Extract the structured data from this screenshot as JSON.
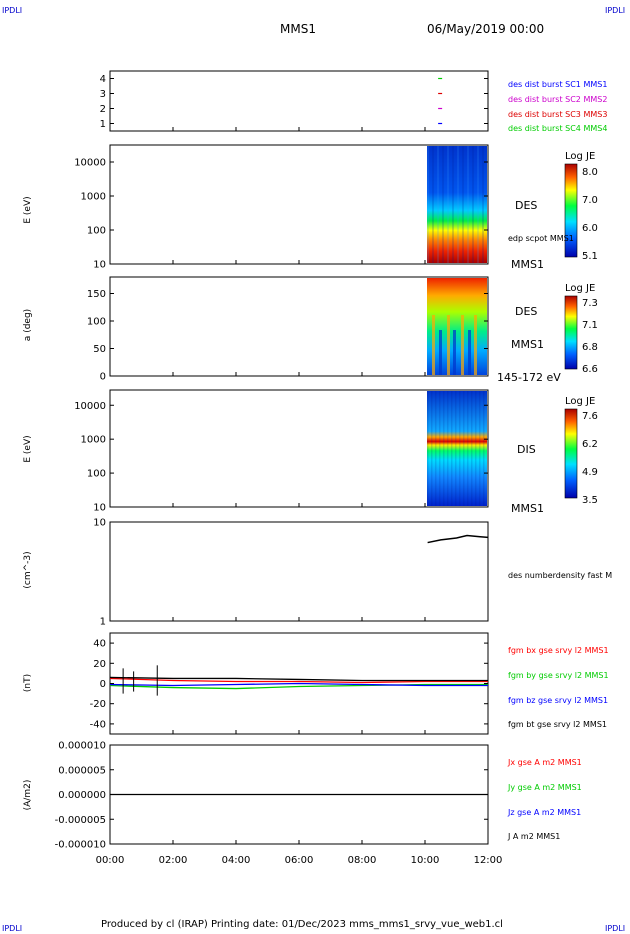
{
  "corners": {
    "tl": "IPDLI",
    "tr": "IPDLI",
    "bl": "IPDLI",
    "br": "IPDLI"
  },
  "header": {
    "mission": "MMS1",
    "datetime": "06/May/2019 00:00"
  },
  "footer": "Produced by cl (IRAP)    Printing date: 01/Dec/2023    mms_mms1_srvy_vue_web1.cl",
  "colors": {
    "mms1": "#0000ff",
    "mms2": "#cc00cc",
    "mms3": "#dd0000",
    "mms4": "#00cc00",
    "bx": "#ff0000",
    "by": "#00cc00",
    "bz": "#0000ff",
    "bt": "#000000"
  },
  "chart_data": [
    {
      "type": "scatter",
      "ylim": [
        0.5,
        4.5
      ],
      "yticks": [
        "1",
        "2",
        "3",
        "4"
      ],
      "legend": [
        "des dist burst SC1 MMS1",
        "des dist burst SC2 MMS2",
        "des dist burst SC3 MMS3",
        "des dist burst SC4 MMS4"
      ],
      "x": [
        "10:25",
        "10:25",
        "10:25",
        "10:25"
      ],
      "values": [
        1,
        2,
        3,
        4
      ]
    },
    {
      "type": "heatmap",
      "ylabel": "E (eV)",
      "yscale": "log",
      "yticks": [
        "10",
        "100",
        "1000",
        "10000"
      ],
      "labels": [
        "DES",
        "edp scpot MMS1",
        "MMS1"
      ],
      "colorbar": {
        "title": "Log JE",
        "ticks": [
          "8.0",
          "7.0",
          "6.0",
          "5.1"
        ]
      },
      "x_range": [
        "10:03",
        "12:00"
      ]
    },
    {
      "type": "heatmap",
      "ylabel": "a (deg)",
      "yticks": [
        "0",
        "50",
        "100",
        "150"
      ],
      "labels": [
        "DES",
        "MMS1",
        "145-172 eV"
      ],
      "colorbar": {
        "title": "Log JE",
        "ticks": [
          "7.3",
          "7.1",
          "6.8",
          "6.6"
        ]
      },
      "x_range": [
        "10:03",
        "12:00"
      ]
    },
    {
      "type": "heatmap",
      "ylabel": "E (eV)",
      "yscale": "log",
      "yticks": [
        "10",
        "100",
        "1000",
        "10000"
      ],
      "labels": [
        "DIS",
        "MMS1"
      ],
      "colorbar": {
        "title": "Log JE",
        "ticks": [
          "7.6",
          "6.2",
          "4.9",
          "3.5"
        ]
      },
      "x_range": [
        "10:03",
        "12:00"
      ]
    },
    {
      "type": "line",
      "ylabel": "(cm^-3)",
      "yscale": "log",
      "yticks": [
        "1",
        "10"
      ],
      "series": [
        {
          "name": "des numberdensity fast M",
          "x": [
            "10:05",
            "10:30",
            "11:00",
            "11:20",
            "11:45",
            "12:00"
          ],
          "values": [
            6.2,
            6.6,
            6.9,
            7.3,
            7.1,
            7.0
          ]
        }
      ]
    },
    {
      "type": "line",
      "ylabel": "(nT)",
      "ylim": [
        -50,
        50
      ],
      "yticks": [
        "40",
        "20",
        "0",
        "-20",
        "-40"
      ],
      "series": [
        {
          "name": "fgm bx gse srvy l2 MMS1",
          "values": [
            5,
            3,
            2,
            2,
            1,
            2
          ]
        },
        {
          "name": "fgm by gse srvy l2 MMS1",
          "values": [
            -2,
            -4,
            -5,
            -3,
            -2,
            -1
          ]
        },
        {
          "name": "fgm bz gse srvy l2 MMS1",
          "values": [
            -1,
            -2,
            -1,
            0,
            -1,
            -2
          ]
        },
        {
          "name": "fgm bt gse srvy l2 MMS1",
          "values": [
            6,
            5,
            5,
            4,
            3,
            3
          ]
        }
      ],
      "x": [
        "00:00",
        "02:00",
        "04:00",
        "06:00",
        "08:00",
        "10:00"
      ]
    },
    {
      "type": "line",
      "ylabel": "(A/m2)",
      "ylim": [
        -1e-05,
        1e-05
      ],
      "yticks": [
        "0.000010",
        "0.000005",
        "0.000000",
        "-0.000005",
        "-0.000010"
      ],
      "series": [
        {
          "name": "Jx gse A m2 MMS1"
        },
        {
          "name": "Jy gse A m2 MMS1"
        },
        {
          "name": "Jz gse A m2 MMS1"
        },
        {
          "name": "J A m2 MMS1"
        }
      ],
      "xticks": [
        "00:00",
        "02:00",
        "04:00",
        "06:00",
        "08:00",
        "10:00",
        "12:00"
      ]
    }
  ]
}
